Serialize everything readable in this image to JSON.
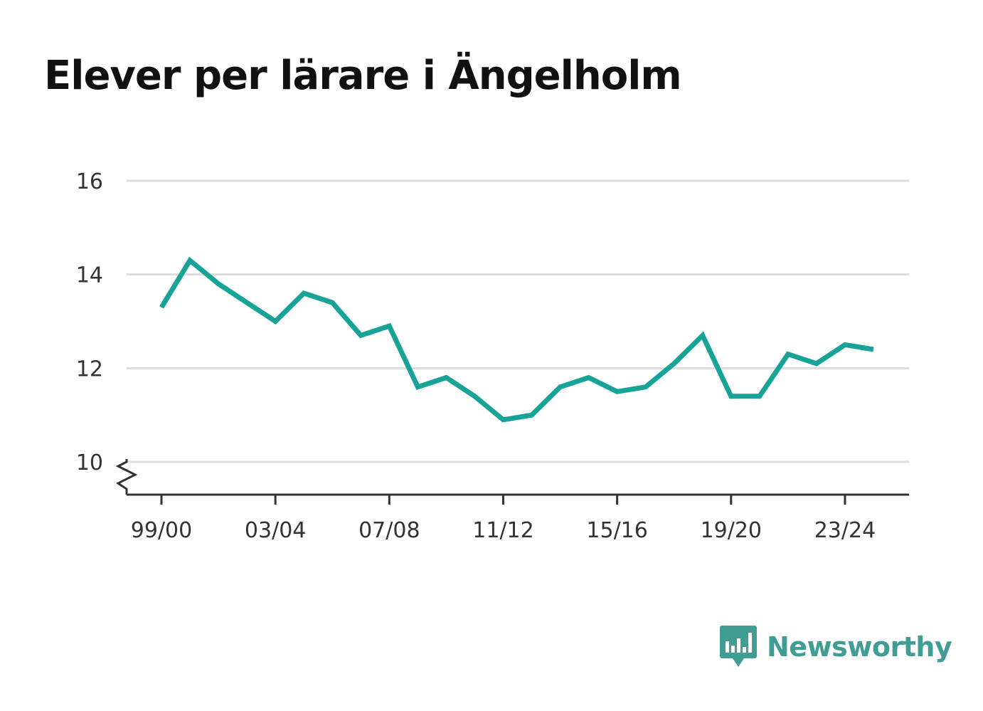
{
  "title": "Elever per lärare i Ängelholm",
  "brand": {
    "name": "Newsworthy",
    "logo_icon": "bar-chart-speech-bubble-icon",
    "color": "#3f9d93"
  },
  "colors": {
    "line": "#17a398",
    "grid": "#dddddd",
    "axis": "#333333"
  },
  "chart_data": {
    "type": "line",
    "title": "Elever per lärare i Ängelholm",
    "xlabel": "",
    "ylabel": "",
    "ylim": [
      9.3,
      16
    ],
    "yticks": [
      10,
      12,
      14,
      16
    ],
    "y_axis_break": true,
    "grid": true,
    "x_tick_labels": [
      "99/00",
      "03/04",
      "07/08",
      "11/12",
      "15/16",
      "19/20",
      "23/24"
    ],
    "series": [
      {
        "name": "",
        "x": [
          "99/00",
          "00/01",
          "01/02",
          "02/03",
          "03/04",
          "04/05",
          "05/06",
          "06/07",
          "07/08",
          "08/09",
          "09/10",
          "10/11",
          "11/12",
          "12/13",
          "13/14",
          "14/15",
          "15/16",
          "16/17",
          "17/18",
          "18/19",
          "19/20",
          "20/21",
          "21/22",
          "22/23",
          "23/24",
          "24/25"
        ],
        "values": [
          13.3,
          14.3,
          13.8,
          13.4,
          13.0,
          13.6,
          13.4,
          12.7,
          12.9,
          11.6,
          11.8,
          11.4,
          10.9,
          11.0,
          11.6,
          11.8,
          11.5,
          11.6,
          12.1,
          12.7,
          11.4,
          11.4,
          12.3,
          12.1,
          12.5,
          12.4
        ]
      }
    ]
  }
}
